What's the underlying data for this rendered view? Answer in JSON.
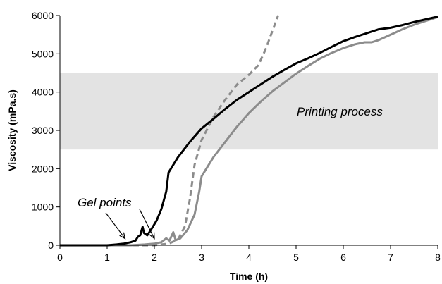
{
  "chart_data": {
    "type": "line",
    "xlabel": "Time (h)",
    "ylabel": "Viscosity (mPa.s)",
    "xlim": [
      0,
      8
    ],
    "ylim": [
      0,
      6000
    ],
    "xticks": [
      "0",
      "1",
      "2",
      "3",
      "4",
      "5",
      "6",
      "7",
      "8"
    ],
    "yticks": [
      "0",
      "1000",
      "2000",
      "3000",
      "4000",
      "5000",
      "6000"
    ],
    "grid": false,
    "legend": "none",
    "band": {
      "label": "Printing process",
      "y_range": [
        2500,
        4500
      ],
      "color": "#e3e3e3"
    },
    "annotations": [
      {
        "text": "Gel points",
        "arrows_to": [
          [
            1.38,
            100
          ],
          [
            2.0,
            100
          ]
        ]
      }
    ],
    "series": [
      {
        "color": "#000000",
        "style": "solid",
        "points": [
          [
            0,
            0
          ],
          [
            1,
            0
          ],
          [
            1.2,
            20
          ],
          [
            1.35,
            40
          ],
          [
            1.5,
            80
          ],
          [
            1.6,
            120
          ],
          [
            1.65,
            220
          ],
          [
            1.7,
            260
          ],
          [
            1.75,
            480
          ],
          [
            1.78,
            320
          ],
          [
            1.85,
            260
          ],
          [
            1.95,
            450
          ],
          [
            2.05,
            650
          ],
          [
            2.15,
            950
          ],
          [
            2.25,
            1400
          ],
          [
            2.3,
            1900
          ],
          [
            2.5,
            2300
          ],
          [
            2.75,
            2700
          ],
          [
            3.0,
            3050
          ],
          [
            3.25,
            3300
          ],
          [
            3.5,
            3560
          ],
          [
            3.75,
            3800
          ],
          [
            4.0,
            4000
          ],
          [
            4.25,
            4200
          ],
          [
            4.5,
            4400
          ],
          [
            4.75,
            4580
          ],
          [
            5.0,
            4750
          ],
          [
            5.25,
            4880
          ],
          [
            5.5,
            5020
          ],
          [
            5.75,
            5180
          ],
          [
            6.0,
            5330
          ],
          [
            6.25,
            5440
          ],
          [
            6.5,
            5540
          ],
          [
            6.75,
            5640
          ],
          [
            7.0,
            5680
          ],
          [
            7.25,
            5750
          ],
          [
            7.5,
            5830
          ],
          [
            7.75,
            5900
          ],
          [
            8.0,
            5970
          ]
        ]
      },
      {
        "color": "#8c8c8c",
        "style": "solid",
        "points": [
          [
            0,
            0
          ],
          [
            1.5,
            0
          ],
          [
            1.8,
            20
          ],
          [
            2.0,
            40
          ],
          [
            2.15,
            80
          ],
          [
            2.25,
            180
          ],
          [
            2.32,
            120
          ],
          [
            2.4,
            340
          ],
          [
            2.45,
            130
          ],
          [
            2.55,
            180
          ],
          [
            2.7,
            400
          ],
          [
            2.85,
            800
          ],
          [
            2.95,
            1400
          ],
          [
            3.0,
            1800
          ],
          [
            3.25,
            2300
          ],
          [
            3.5,
            2700
          ],
          [
            3.75,
            3100
          ],
          [
            4.0,
            3450
          ],
          [
            4.25,
            3750
          ],
          [
            4.5,
            4020
          ],
          [
            4.75,
            4250
          ],
          [
            5.0,
            4480
          ],
          [
            5.25,
            4680
          ],
          [
            5.5,
            4870
          ],
          [
            5.75,
            5020
          ],
          [
            6.0,
            5150
          ],
          [
            6.25,
            5250
          ],
          [
            6.45,
            5300
          ],
          [
            6.6,
            5300
          ],
          [
            6.75,
            5360
          ],
          [
            7.0,
            5500
          ],
          [
            7.25,
            5640
          ],
          [
            7.5,
            5760
          ],
          [
            7.75,
            5860
          ],
          [
            8.0,
            5960
          ]
        ]
      },
      {
        "color": "#8c8c8c",
        "style": "dashed",
        "points": [
          [
            0,
            0
          ],
          [
            2.0,
            0
          ],
          [
            2.3,
            40
          ],
          [
            2.5,
            150
          ],
          [
            2.65,
            500
          ],
          [
            2.75,
            1200
          ],
          [
            2.85,
            2100
          ],
          [
            3.0,
            2750
          ],
          [
            3.25,
            3350
          ],
          [
            3.5,
            3800
          ],
          [
            3.75,
            4200
          ],
          [
            4.0,
            4450
          ],
          [
            4.2,
            4700
          ],
          [
            4.35,
            5100
          ],
          [
            4.5,
            5600
          ],
          [
            4.62,
            6000
          ]
        ]
      }
    ]
  }
}
